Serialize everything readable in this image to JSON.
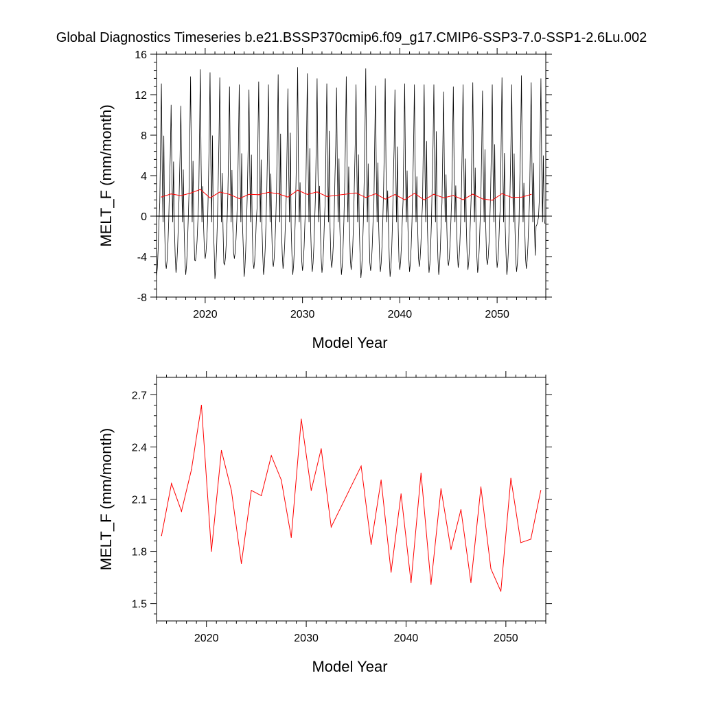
{
  "title": "Global Diagnostics Timeseries b.e21.BSSP370cmip6.f09_g17.CMIP6-SSP3-7.0-SSP1-2.6Lu.002",
  "chart_data": [
    {
      "type": "line",
      "title": "Global Diagnostics Timeseries b.e21.BSSP370cmip6.f09_g17.CMIP6-SSP3-7.0-SSP1-2.6Lu.002",
      "xlabel": "Model Year",
      "ylabel": "MELT_F (mm/month)",
      "xlim": [
        2015,
        2055
      ],
      "ylim": [
        -8,
        16
      ],
      "xticks": [
        "2020",
        "2030",
        "2040",
        "2050"
      ],
      "yticks": [
        "-8",
        "-4",
        "0",
        "4",
        "8",
        "12",
        "16"
      ],
      "reference_line_y": 0,
      "monthly_series": {
        "start_year": 2015,
        "color": "#000000",
        "annual_peaks": [
          13.1,
          11.0,
          10.9,
          13.8,
          14.5,
          14.2,
          13.7,
          12.8,
          13.0,
          12.5,
          13.3,
          13.0,
          14.0,
          12.6,
          14.7,
          14.1,
          13.6,
          13.1,
          12.7,
          13.8,
          13.0,
          14.6,
          12.9,
          13.6,
          12.5,
          13.1,
          13.0,
          13.0,
          13.0,
          12.3,
          12.8,
          13.0,
          13.2,
          12.4,
          13.0,
          13.7,
          13.0,
          13.9,
          13.2,
          13.6
        ],
        "annual_troughs": [
          -6.0,
          -5.2,
          -5.6,
          -5.8,
          -4.4,
          -4.2,
          -6.2,
          -4.8,
          -4.2,
          -6.0,
          -5.2,
          -5.8,
          -5.0,
          -5.2,
          -5.8,
          -5.4,
          -5.5,
          -5.6,
          -5.1,
          -5.8,
          -5.3,
          -6.1,
          -5.4,
          -5.5,
          -6.0,
          -5.3,
          -5.5,
          -5.0,
          -5.6,
          -5.8,
          -4.9,
          -5.1,
          -5.3,
          -5.6,
          -4.8,
          -5.1,
          -5.8,
          -5.5,
          -5.2,
          -1.0
        ]
      },
      "series": [
        {
          "color": "#ff0000",
          "x": [
            2015.5,
            2016.5,
            2017.5,
            2018.5,
            2019.5,
            2020.5,
            2021.5,
            2022.5,
            2023.5,
            2024.5,
            2025.5,
            2026.5,
            2027.5,
            2028.5,
            2029.5,
            2030.5,
            2031.5,
            2032.5,
            2035.5,
            2036.5,
            2037.5,
            2038.5,
            2039.5,
            2040.5,
            2041.5,
            2042.5,
            2043.5,
            2044.5,
            2045.5,
            2046.5,
            2047.5,
            2048.5,
            2049.5,
            2050.5,
            2051.5,
            2052.5,
            2053.5
          ],
          "values": [
            1.89,
            2.19,
            2.03,
            2.27,
            2.64,
            1.8,
            2.38,
            2.15,
            1.73,
            2.15,
            2.12,
            2.35,
            2.21,
            1.88,
            2.56,
            2.15,
            2.39,
            1.94,
            2.29,
            1.84,
            2.21,
            1.68,
            2.13,
            1.62,
            2.25,
            1.61,
            2.16,
            1.81,
            2.04,
            1.62,
            2.17,
            1.7,
            1.57,
            2.22,
            1.85,
            1.87,
            2.15
          ]
        }
      ]
    },
    {
      "type": "line",
      "xlabel": "Model Year",
      "ylabel": "MELT_F (mm/month)",
      "xlim": [
        2015,
        2054
      ],
      "ylim": [
        1.4,
        2.8
      ],
      "xticks": [
        "2020",
        "2030",
        "2040",
        "2050"
      ],
      "yticks": [
        "1.5",
        "1.8",
        "2.1",
        "2.4",
        "2.7"
      ],
      "series": [
        {
          "color": "#ff0000",
          "x": [
            2015.5,
            2016.5,
            2017.5,
            2018.5,
            2019.5,
            2020.5,
            2021.5,
            2022.5,
            2023.5,
            2024.5,
            2025.5,
            2026.5,
            2027.5,
            2028.5,
            2029.5,
            2030.5,
            2031.5,
            2032.5,
            2035.5,
            2036.5,
            2037.5,
            2038.5,
            2039.5,
            2040.5,
            2041.5,
            2042.5,
            2043.5,
            2044.5,
            2045.5,
            2046.5,
            2047.5,
            2048.5,
            2049.5,
            2050.5,
            2051.5,
            2052.5,
            2053.5
          ],
          "values": [
            1.89,
            2.19,
            2.03,
            2.27,
            2.64,
            1.8,
            2.38,
            2.15,
            1.73,
            2.15,
            2.12,
            2.35,
            2.21,
            1.88,
            2.56,
            2.15,
            2.39,
            1.94,
            2.29,
            1.84,
            2.21,
            1.68,
            2.13,
            1.62,
            2.25,
            1.61,
            2.16,
            1.81,
            2.04,
            1.62,
            2.17,
            1.7,
            1.57,
            2.22,
            1.85,
            1.87,
            2.15
          ]
        }
      ]
    }
  ]
}
